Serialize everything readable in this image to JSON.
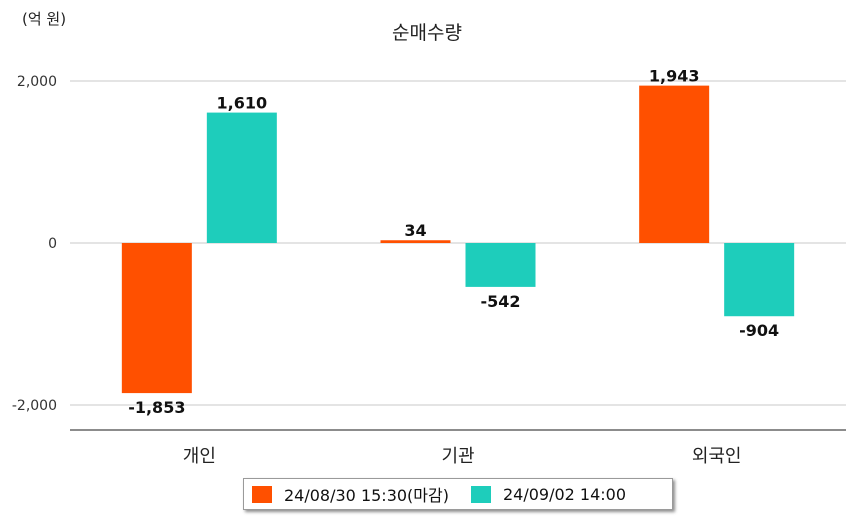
{
  "unit_label": "(억 원)",
  "chart_data": {
    "type": "bar",
    "title": "순매수량",
    "categories": [
      "개인",
      "기관",
      "외국인"
    ],
    "series": [
      {
        "name": "24/08/30 15:30(마감)",
        "values": [
          -1853,
          34,
          1943
        ],
        "color": "#ff5000"
      },
      {
        "name": "24/09/02 14:00",
        "values": [
          1610,
          -542,
          -904
        ],
        "color": "#1ecdbb"
      }
    ],
    "value_labels": [
      [
        "-1,853",
        "34",
        "1,943"
      ],
      [
        "1,610",
        "-542",
        "-904"
      ]
    ],
    "yticks": [
      {
        "value": 2000,
        "label": "2,000"
      },
      {
        "value": 0,
        "label": "0"
      },
      {
        "value": -2000,
        "label": "-2,000"
      }
    ],
    "ylim": [
      -2300,
      2000
    ],
    "grid": true,
    "legend_position": "bottom"
  }
}
